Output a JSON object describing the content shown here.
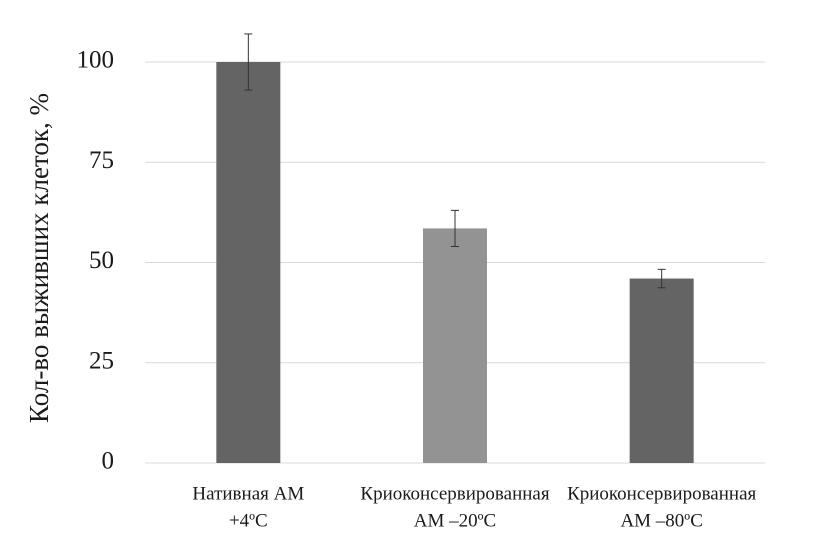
{
  "chart_data": {
    "type": "bar",
    "y_label": "Кол-во выживших клеток, %",
    "categories": [
      [
        "Нативная АМ",
        "+4ºС"
      ],
      [
        "Криоконсервированная",
        "АМ –20ºС"
      ],
      [
        "Криоконсервированная",
        "АМ –80ºС"
      ]
    ],
    "values": [
      100,
      58.5,
      46
    ],
    "errors": [
      7,
      4.5,
      2.3
    ],
    "colors": [
      "#646464",
      "#939393",
      "#646464"
    ],
    "ylim": [
      0,
      100
    ],
    "yticks": [
      0,
      25,
      50,
      75,
      100
    ],
    "grid": true
  }
}
